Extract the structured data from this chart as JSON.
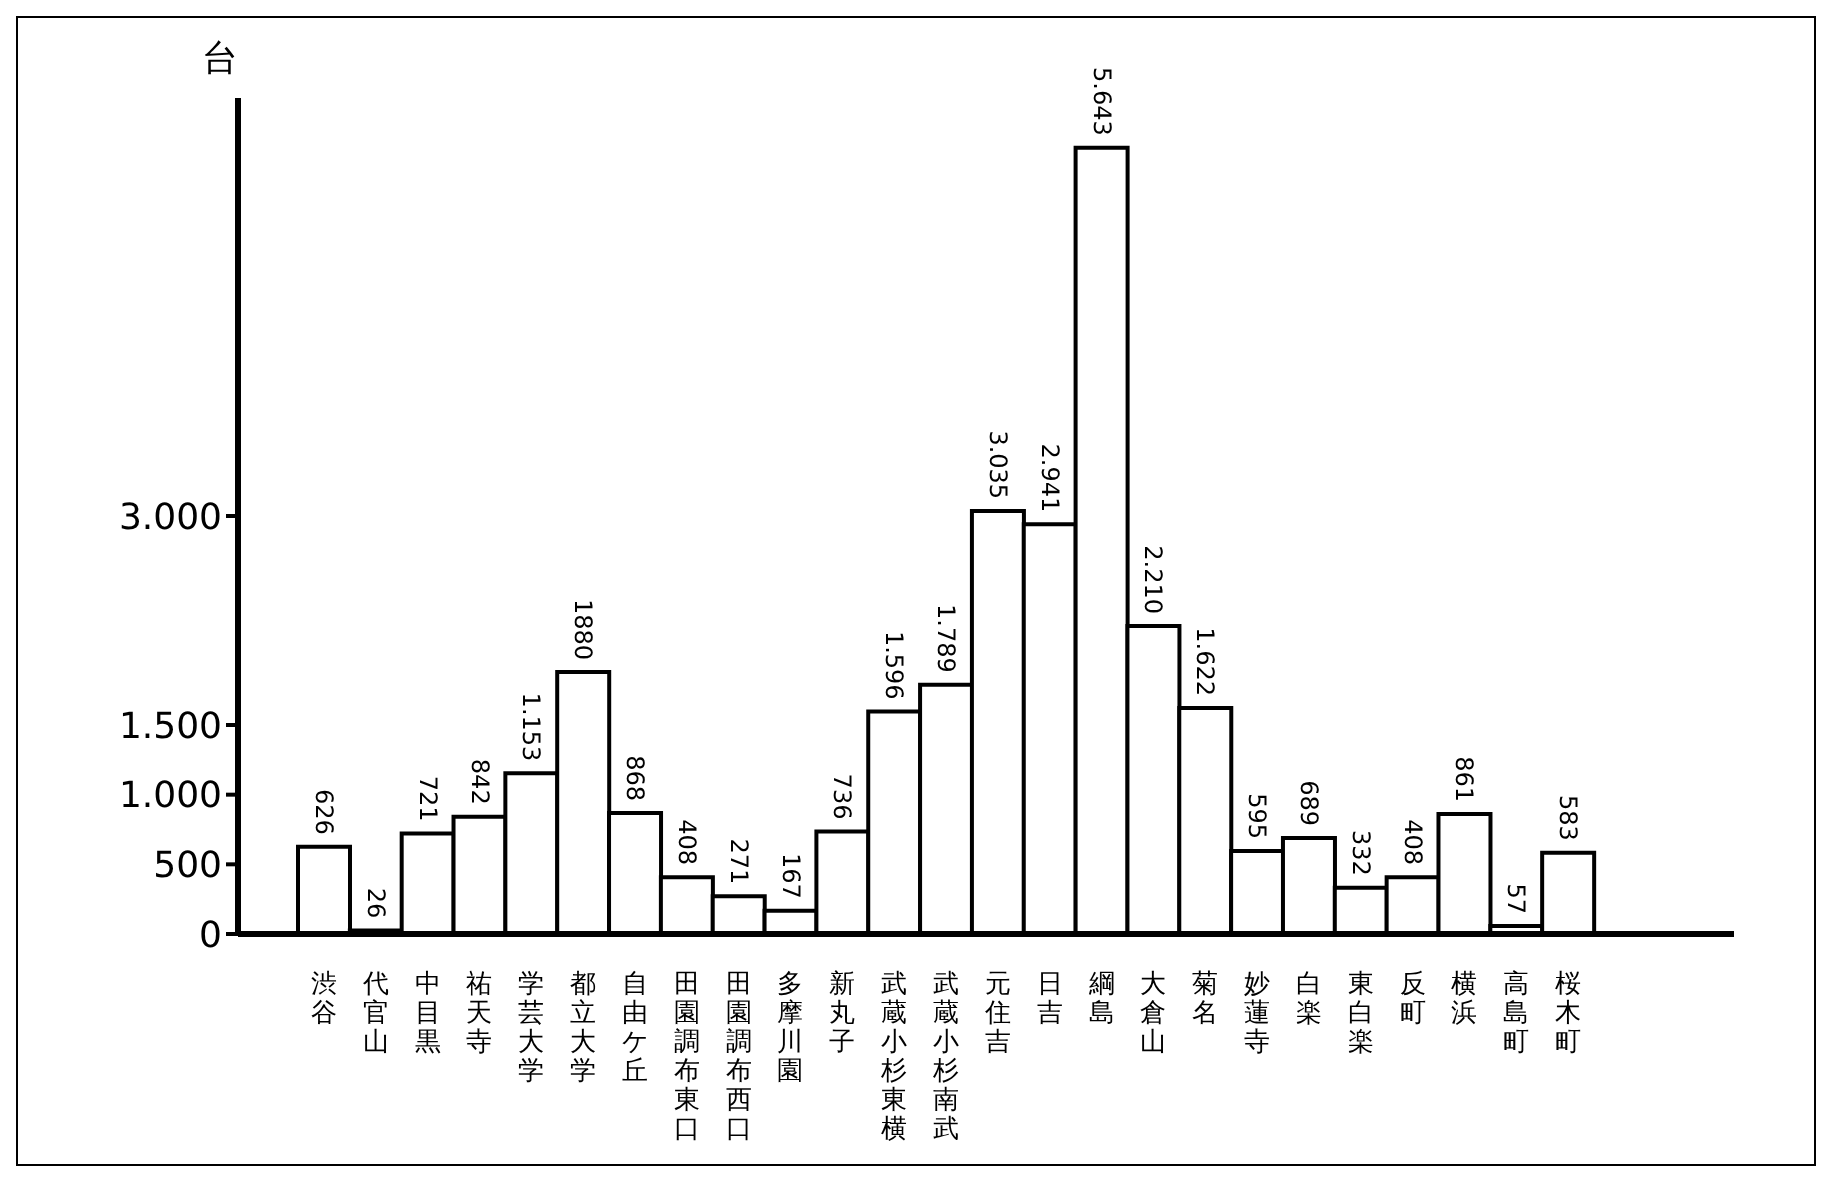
{
  "chart_data": {
    "type": "bar",
    "ylabel": "台",
    "categories": [
      "渋谷",
      "代官山",
      "中目黒",
      "祐天寺",
      "学芸大学",
      "都立大学",
      "自由ケ丘",
      "田園調布東口",
      "田園調布西口",
      "多摩川園",
      "新丸子",
      "武蔵小杉東横",
      "武蔵小杉南武",
      "元住吉",
      "日吉",
      "綱島",
      "大倉山",
      "菊名",
      "妙蓮寺",
      "白楽",
      "東白楽",
      "反町",
      "横浜",
      "高島町",
      "桜木町"
    ],
    "values": [
      626,
      26,
      721,
      842,
      1153,
      1880,
      868,
      408,
      271,
      167,
      736,
      1596,
      1789,
      3035,
      2941,
      5643,
      2210,
      1622,
      595,
      689,
      332,
      408,
      861,
      57,
      583
    ],
    "value_labels": [
      "626",
      "26",
      "721",
      "842",
      "1.153",
      "1880",
      "868",
      "408",
      "271",
      "167",
      "736",
      "1.596",
      "1.789",
      "3.035",
      "2.941",
      "5.643",
      "2.210",
      "1.622",
      "595",
      "689",
      "332",
      "408",
      "861",
      "57",
      "583"
    ],
    "color": "#ffffff",
    "ylim": [
      0,
      6000
    ],
    "yticks": [
      0,
      500,
      {
        "value": 1000,
        "label": "1.000"
      },
      {
        "value": 1500,
        "label": "1.500"
      },
      {
        "value": 3000,
        "label": "3.000"
      }
    ],
    "grid": false,
    "legend": false
  }
}
